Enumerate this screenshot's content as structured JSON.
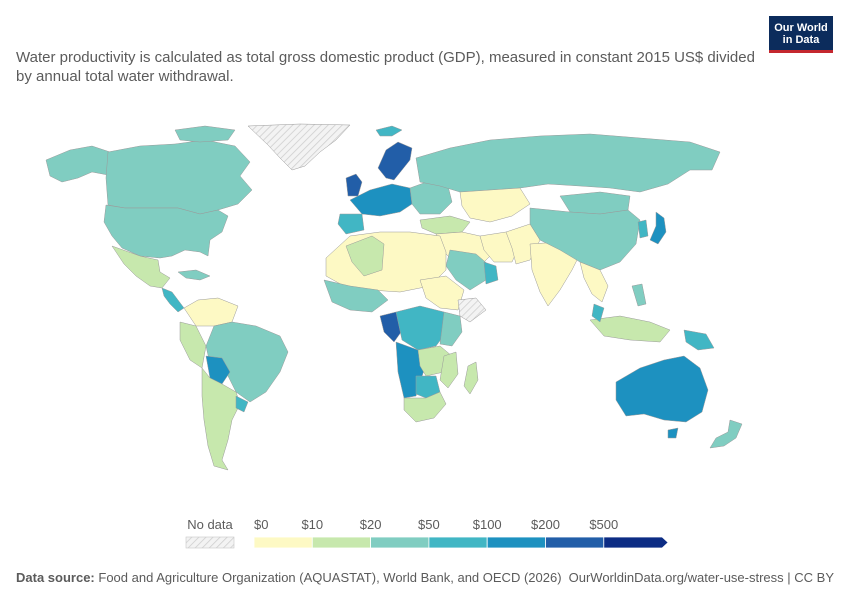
{
  "subtitle": "Water productivity is calculated as total gross domestic product (GDP), measured in constant 2015 US$ divided by annual total water withdrawal.",
  "logo": {
    "line1": "Our World",
    "line2": "in Data",
    "bg_color": "#0c2c5c",
    "accent_color": "#c4272f"
  },
  "legend": {
    "no_data_label": "No data",
    "bins": [
      {
        "label": "$0",
        "color": "#fdf9c4"
      },
      {
        "label": "$10",
        "color": "#c7e8ad"
      },
      {
        "label": "$20",
        "color": "#80cdc1"
      },
      {
        "label": "$50",
        "color": "#41b6c4"
      },
      {
        "label": "$100",
        "color": "#1d91c0"
      },
      {
        "label": "$200",
        "color": "#225ea8"
      },
      {
        "label": "$500",
        "color": "#0c2c84"
      }
    ]
  },
  "footer": {
    "source_label": "Data source:",
    "source_text": "Food and Agriculture Organization (AQUASTAT), World Bank, and OECD (2026)",
    "url": "OurWorldinData.org/water-use-stress | CC BY"
  }
}
